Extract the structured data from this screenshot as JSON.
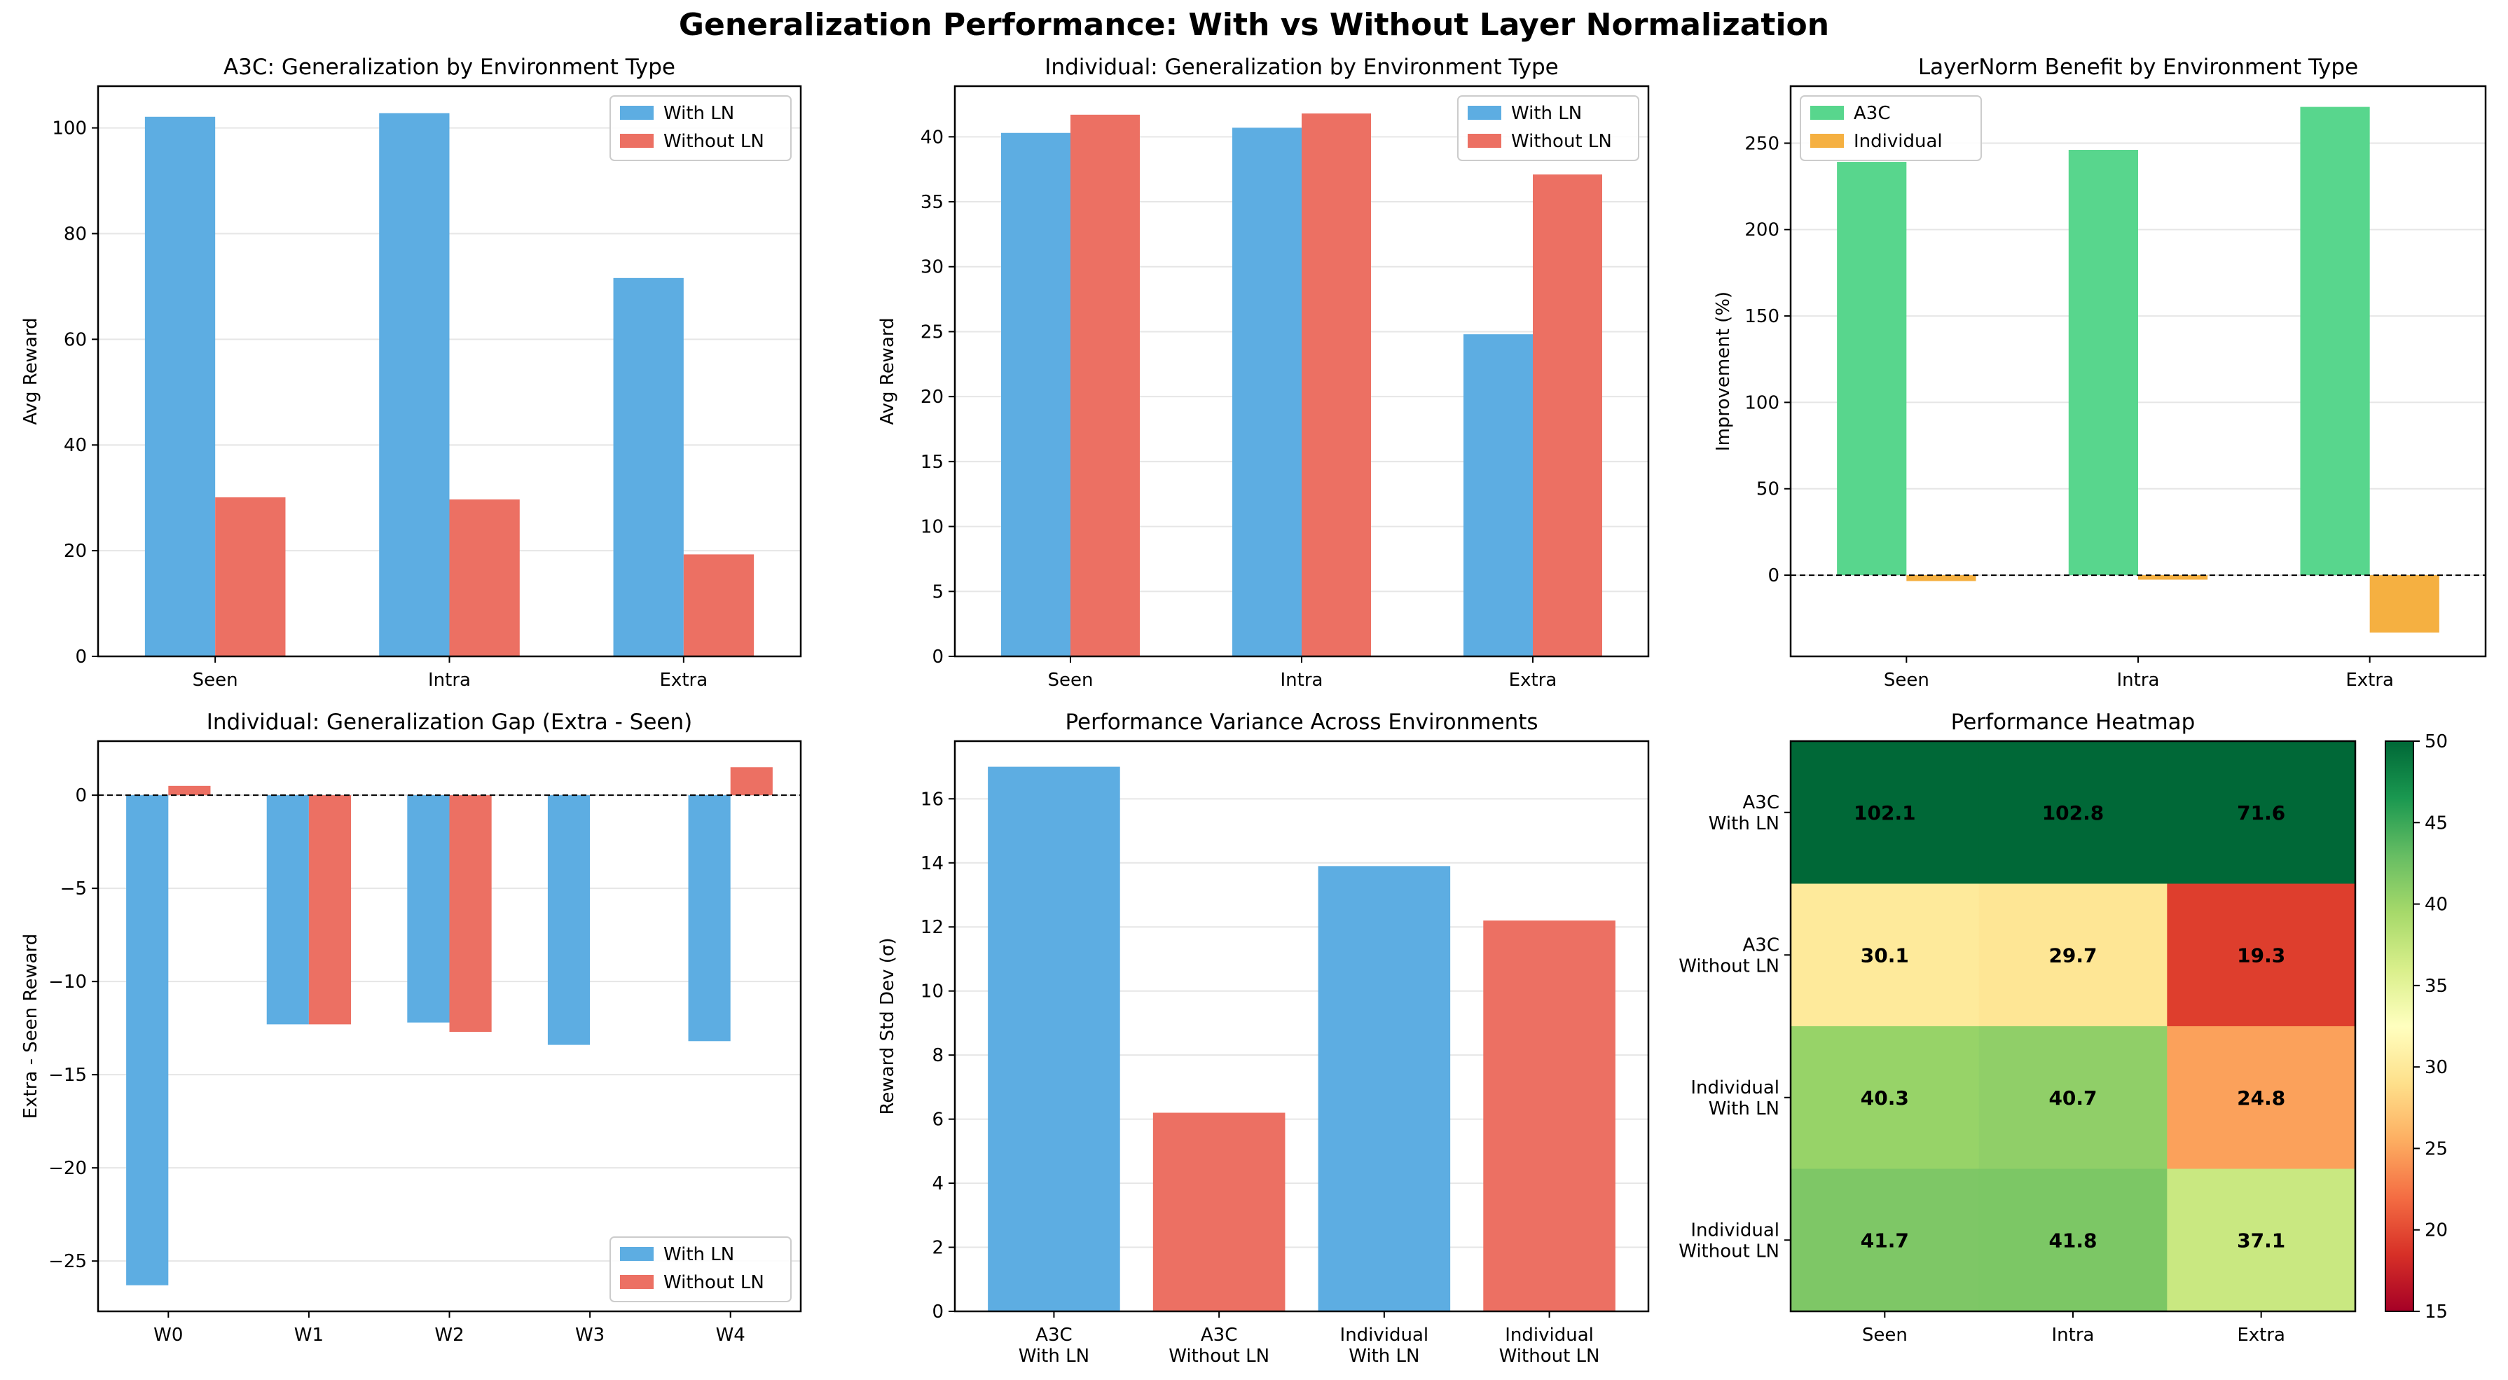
{
  "figure": {
    "title": "Generalization Performance: With vs Without Layer Normalization"
  },
  "colors": {
    "with_ln": "#5dade2",
    "without_ln": "#ec7063",
    "a3c": "#58d68d",
    "individual": "#f5b041",
    "grid": "#e6e6e6",
    "axis": "#000000",
    "zero_line": "#000000"
  },
  "chart_data": [
    {
      "id": "a3c-generalization",
      "type": "bar",
      "title": "A3C: Generalization by Environment Type",
      "xlabel": "",
      "ylabel": "Avg Reward",
      "categories": [
        "Seen",
        "Intra",
        "Extra"
      ],
      "series": [
        {
          "name": "With LN",
          "values": [
            102.1,
            102.8,
            71.6
          ],
          "color_key": "with_ln"
        },
        {
          "name": "Without LN",
          "values": [
            30.1,
            29.7,
            19.3
          ],
          "color_key": "without_ln"
        }
      ],
      "ylim": [
        0,
        107.9
      ],
      "yticks": [
        0,
        20,
        40,
        60,
        80,
        100
      ],
      "grid": "y",
      "legend": "top-right"
    },
    {
      "id": "individual-generalization",
      "type": "bar",
      "title": "Individual: Generalization by Environment Type",
      "xlabel": "",
      "ylabel": "Avg Reward",
      "categories": [
        "Seen",
        "Intra",
        "Extra"
      ],
      "series": [
        {
          "name": "With LN",
          "values": [
            40.3,
            40.7,
            24.8
          ],
          "color_key": "with_ln"
        },
        {
          "name": "Without LN",
          "values": [
            41.7,
            41.8,
            37.1
          ],
          "color_key": "without_ln"
        }
      ],
      "ylim": [
        0,
        43.9
      ],
      "yticks": [
        0,
        5,
        10,
        15,
        20,
        25,
        30,
        35,
        40
      ],
      "grid": "y",
      "legend": "top-right"
    },
    {
      "id": "layernorm-benefit",
      "type": "bar",
      "title": "LayerNorm Benefit by Environment Type",
      "xlabel": "",
      "ylabel": "Improvement (%)",
      "categories": [
        "Seen",
        "Intra",
        "Extra"
      ],
      "series": [
        {
          "name": "A3C",
          "values": [
            239.2,
            246.1,
            271.0
          ],
          "color_key": "a3c"
        },
        {
          "name": "Individual",
          "values": [
            -3.4,
            -2.6,
            -33.2
          ],
          "color_key": "individual"
        }
      ],
      "ylim": [
        -47,
        283
      ],
      "yticks": [
        0,
        50,
        100,
        150,
        200,
        250
      ],
      "grid": "y",
      "zero_line": true,
      "legend": "top-left"
    },
    {
      "id": "individual-gap",
      "type": "bar",
      "title": "Individual: Generalization Gap (Extra - Seen)",
      "xlabel": "",
      "ylabel": "Extra - Seen Reward",
      "categories": [
        "W0",
        "W1",
        "W2",
        "W3",
        "W4"
      ],
      "series": [
        {
          "name": "With LN",
          "values": [
            -26.3,
            -12.3,
            -12.2,
            -13.4,
            -13.2
          ],
          "color_key": "with_ln"
        },
        {
          "name": "Without LN",
          "values": [
            0.5,
            -12.3,
            -12.7,
            0,
            1.5
          ],
          "color_key": "without_ln"
        }
      ],
      "ylim": [
        -27.7,
        2.9
      ],
      "yticks": [
        -25,
        -20,
        -15,
        -10,
        -5,
        0
      ],
      "tick_labels": [
        "−25",
        "−20",
        "−15",
        "−10",
        "−5",
        "0"
      ],
      "grid": "y",
      "zero_line": true,
      "legend": "bottom-right"
    },
    {
      "id": "performance-variance",
      "type": "bar",
      "title": "Performance Variance Across Environments",
      "xlabel": "",
      "ylabel": "Reward Std Dev (σ)",
      "categories": [
        "A3C\nWith LN",
        "A3C\nWithout LN",
        "Individual\nWith LN",
        "Individual\nWithout LN"
      ],
      "values": [
        17.0,
        6.2,
        13.9,
        12.2
      ],
      "bar_color_keys": [
        "with_ln",
        "without_ln",
        "with_ln",
        "without_ln"
      ],
      "ylim": [
        0,
        17.8
      ],
      "yticks": [
        0,
        2,
        4,
        6,
        8,
        10,
        12,
        14,
        16
      ],
      "grid": "y"
    },
    {
      "id": "performance-heatmap",
      "type": "heatmap",
      "title": "Performance Heatmap",
      "x": [
        "Seen",
        "Intra",
        "Extra"
      ],
      "y": [
        "A3C\nWith LN",
        "A3C\nWithout LN",
        "Individual\nWith LN",
        "Individual\nWithout LN"
      ],
      "values": [
        [
          102.1,
          102.8,
          71.6
        ],
        [
          30.1,
          29.7,
          19.3
        ],
        [
          40.3,
          40.7,
          24.8
        ],
        [
          41.7,
          41.8,
          37.1
        ]
      ],
      "colormap": "RdYlGn",
      "vmin": 15,
      "vmax": 50,
      "colorbar_ticks": [
        15,
        20,
        25,
        30,
        35,
        40,
        45,
        50
      ]
    }
  ]
}
